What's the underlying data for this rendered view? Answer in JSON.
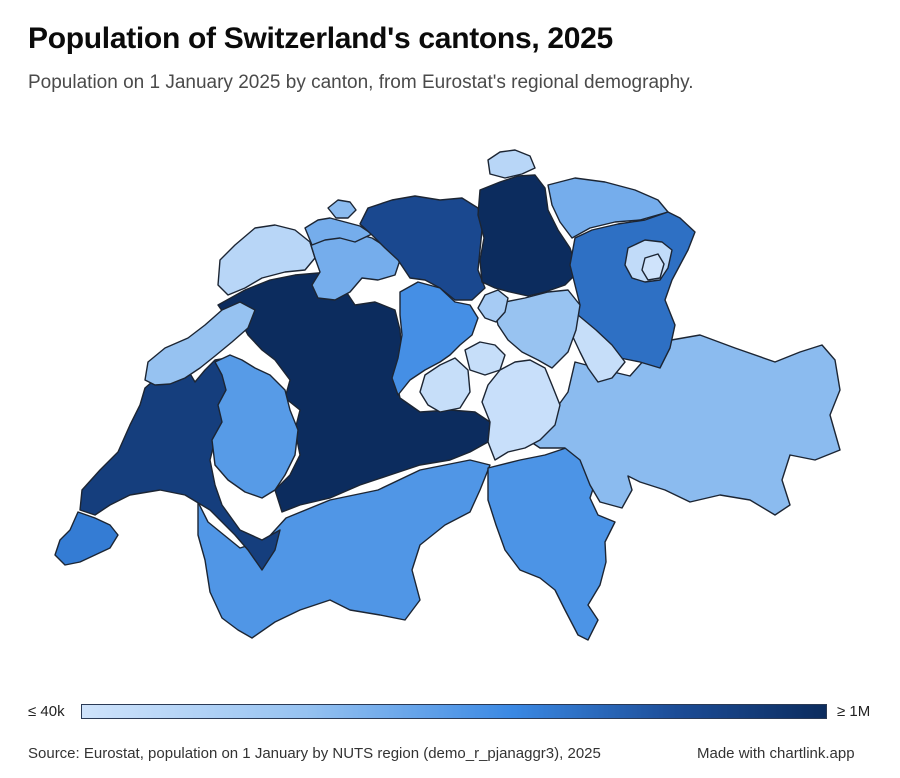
{
  "header": {
    "title": "Population of Switzerland's cantons, 2025",
    "subtitle": "Population on 1 January 2025 by canton, from Eurostat's regional demography."
  },
  "legend": {
    "min_label": "≤ 40k",
    "max_label": "≥ 1M",
    "min_value": 40000,
    "max_value": 1000000,
    "scale_colors": [
      "#cfe3fb",
      "#96c2f1",
      "#3a88e3",
      "#1c4c96",
      "#0c2c5e"
    ]
  },
  "footer": {
    "source": "Source: Eurostat, population on 1 January by NUTS region (demo_r_pjanaggr3), 2025",
    "credit": "Made with chartlink.app"
  },
  "map": {
    "border_color": "#1c2533",
    "cantons": [
      {
        "id": "zurich",
        "level": 1.0
      },
      {
        "id": "bern",
        "level": 1.0
      },
      {
        "id": "vaud",
        "level": 0.86
      },
      {
        "id": "aargau",
        "level": 0.78
      },
      {
        "id": "stgallen",
        "level": 0.6
      },
      {
        "id": "geneva",
        "level": 0.55
      },
      {
        "id": "lucerne",
        "level": 0.47
      },
      {
        "id": "ticino",
        "level": 0.45
      },
      {
        "id": "valais",
        "level": 0.44
      },
      {
        "id": "fribourg",
        "level": 0.42
      },
      {
        "id": "basellandschaft",
        "level": 0.34
      },
      {
        "id": "thurgau",
        "level": 0.34
      },
      {
        "id": "solothurn",
        "level": 0.34
      },
      {
        "id": "grisons",
        "level": 0.28
      },
      {
        "id": "baselstadt",
        "level": 0.28
      },
      {
        "id": "neuchatel",
        "level": 0.25
      },
      {
        "id": "schwyz",
        "level": 0.24
      },
      {
        "id": "zug",
        "level": 0.18
      },
      {
        "id": "schaffhausen",
        "level": 0.1
      },
      {
        "id": "jura",
        "level": 0.1
      },
      {
        "id": "appenzellar",
        "level": 0.06
      },
      {
        "id": "nidwalden",
        "level": 0.04
      },
      {
        "id": "glarus",
        "level": 0.04
      },
      {
        "id": "obwalden",
        "level": 0.04
      },
      {
        "id": "uri",
        "level": 0.03
      },
      {
        "id": "appenzellai",
        "level": 0.0
      }
    ]
  }
}
